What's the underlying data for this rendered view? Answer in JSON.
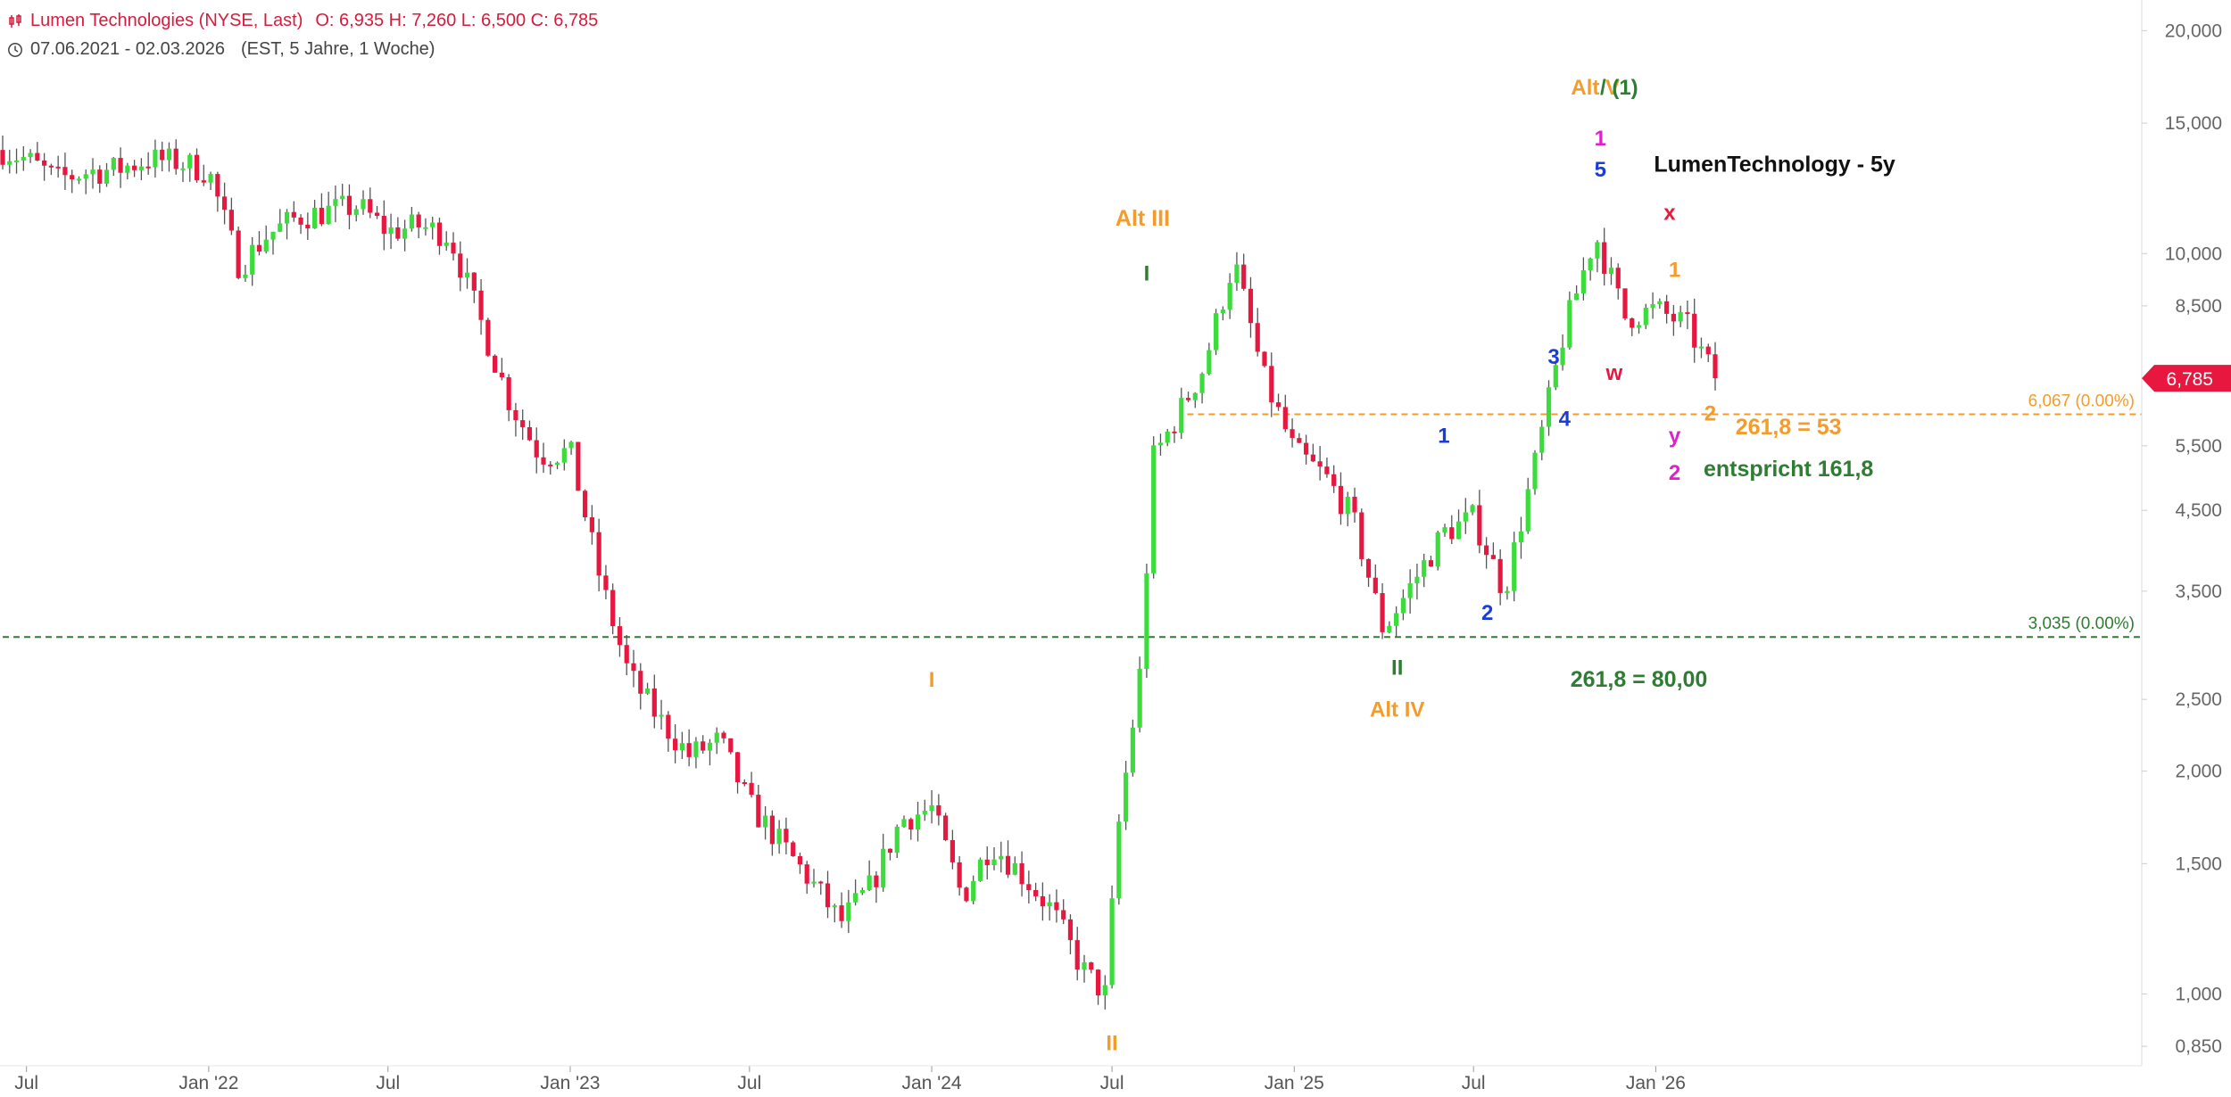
{
  "header": {
    "title": "Lumen Technologies (NYSE, Last)",
    "ohlc": "O: 6,935  H: 7,260  L: 6,500  C: 6,785",
    "range": "07.06.2021 - 02.03.2026",
    "range_detail": "(EST, 5 Jahre, 1 Woche)",
    "icons": [
      "candlestick-icon",
      "clock-icon"
    ]
  },
  "colors": {
    "up": "#3ddc3d",
    "down": "#e8173f",
    "wick": "#555555",
    "orange": "#f39c2b",
    "green": "#2e7d32",
    "blue": "#1a3cdb",
    "magenta": "#e020c8",
    "red": "#e8173f",
    "black": "#111111"
  },
  "chart_data": {
    "type": "candlestick",
    "title": "LumenTechnology - 5y",
    "y_scale": "log",
    "ylim": [
      0.8,
      22
    ],
    "x_range": [
      "2021-06-07",
      "2026-03-02"
    ],
    "y_ticks": [
      {
        "v": 20,
        "label": "20,000"
      },
      {
        "v": 15,
        "label": "15,000"
      },
      {
        "v": 10,
        "label": "10,000"
      },
      {
        "v": 8.5,
        "label": "8,500"
      },
      {
        "v": 5.5,
        "label": "5,500"
      },
      {
        "v": 4.5,
        "label": "4,500"
      },
      {
        "v": 3.5,
        "label": "3,500"
      },
      {
        "v": 2.5,
        "label": "2,500"
      },
      {
        "v": 2.0,
        "label": "2,000"
      },
      {
        "v": 1.5,
        "label": "1,500"
      },
      {
        "v": 1.0,
        "label": "1,000"
      },
      {
        "v": 0.85,
        "label": "0,850"
      }
    ],
    "x_ticks": [
      {
        "d": "2021-07-01",
        "label": "Jul"
      },
      {
        "d": "2022-01-01",
        "label": "Jan '22"
      },
      {
        "d": "2022-07-01",
        "label": "Jul"
      },
      {
        "d": "2023-01-01",
        "label": "Jan '23"
      },
      {
        "d": "2023-07-01",
        "label": "Jul"
      },
      {
        "d": "2024-01-01",
        "label": "Jan '24"
      },
      {
        "d": "2024-07-01",
        "label": "Jul"
      },
      {
        "d": "2025-01-01",
        "label": "Jan '25"
      },
      {
        "d": "2025-07-01",
        "label": "Jul"
      },
      {
        "d": "2026-01-01",
        "label": "Jan '26"
      }
    ],
    "last_price": {
      "v": 6.785,
      "label": "6,785"
    },
    "hlines": [
      {
        "v": 6.067,
        "label": "6,067 (0.00%)",
        "color": "#f39c2b",
        "start": "2024-09-15"
      },
      {
        "v": 3.035,
        "label": "3,035 (0.00%)",
        "color": "#2e7d32",
        "start": "2021-06-07"
      }
    ],
    "close_path": [
      [
        "2021-06-07",
        13.8
      ],
      [
        "2021-07-01",
        13.4
      ],
      [
        "2021-08-01",
        12.6
      ],
      [
        "2021-09-01",
        12.9
      ],
      [
        "2021-10-01",
        13.0
      ],
      [
        "2021-11-01",
        13.4
      ],
      [
        "2021-12-01",
        13.3
      ],
      [
        "2022-01-01",
        12.9
      ],
      [
        "2022-02-01",
        9.6
      ],
      [
        "2022-03-01",
        10.6
      ],
      [
        "2022-04-01",
        11.2
      ],
      [
        "2022-05-01",
        11.4
      ],
      [
        "2022-06-01",
        11.6
      ],
      [
        "2022-07-01",
        10.7
      ],
      [
        "2022-08-01",
        10.9
      ],
      [
        "2022-09-01",
        10.6
      ],
      [
        "2022-10-01",
        8.2
      ],
      [
        "2022-11-01",
        6.3
      ],
      [
        "2022-12-01",
        5.35
      ],
      [
        "2023-01-01",
        5.4
      ],
      [
        "2023-02-01",
        3.6
      ],
      [
        "2023-03-01",
        2.7
      ],
      [
        "2023-04-01",
        2.35
      ],
      [
        "2023-05-01",
        2.1
      ],
      [
        "2023-06-01",
        2.2
      ],
      [
        "2023-07-01",
        1.8
      ],
      [
        "2023-08-01",
        1.6
      ],
      [
        "2023-09-01",
        1.42
      ],
      [
        "2023-10-01",
        1.25
      ],
      [
        "2023-11-01",
        1.4
      ],
      [
        "2023-12-01",
        1.72
      ],
      [
        "2024-01-01",
        1.78
      ],
      [
        "2024-02-01",
        1.35
      ],
      [
        "2024-03-01",
        1.6
      ],
      [
        "2024-04-01",
        1.45
      ],
      [
        "2024-05-01",
        1.3
      ],
      [
        "2024-06-01",
        1.08
      ],
      [
        "2024-06-24",
        1.0
      ],
      [
        "2024-07-08",
        1.7
      ],
      [
        "2024-07-29",
        2.7
      ],
      [
        "2024-08-12",
        5.3
      ],
      [
        "2024-09-01",
        5.9
      ],
      [
        "2024-10-01",
        7.0
      ],
      [
        "2024-11-01",
        9.8
      ],
      [
        "2024-12-01",
        6.8
      ],
      [
        "2025-01-01",
        5.4
      ],
      [
        "2025-02-01",
        5.0
      ],
      [
        "2025-03-01",
        4.4
      ],
      [
        "2025-04-01",
        3.1
      ],
      [
        "2025-05-01",
        3.6
      ],
      [
        "2025-06-01",
        4.2
      ],
      [
        "2025-07-01",
        4.4
      ],
      [
        "2025-08-01",
        3.5
      ],
      [
        "2025-09-01",
        5.2
      ],
      [
        "2025-10-01",
        7.9
      ],
      [
        "2025-11-01",
        10.6
      ],
      [
        "2025-12-01",
        8.2
      ],
      [
        "2026-01-01",
        8.4
      ],
      [
        "2026-02-01",
        8.0
      ],
      [
        "2026-03-02",
        6.785
      ]
    ],
    "annotations": [
      {
        "text": "Alt III",
        "d": "2024-08-01",
        "v": 10.9,
        "color": "orange"
      },
      {
        "text": "I",
        "d": "2024-08-05",
        "v": 9.2,
        "color": "green"
      },
      {
        "text": "I",
        "d": "2024-01-01",
        "v": 2.6,
        "color": "orange"
      },
      {
        "text": "II",
        "d": "2024-07-01",
        "v": 0.84,
        "color": "orange"
      },
      {
        "text": "II",
        "d": "2025-04-15",
        "v": 2.7,
        "color": "green"
      },
      {
        "text": "Alt IV",
        "d": "2025-04-15",
        "v": 2.37,
        "color": "orange"
      },
      {
        "text": "1",
        "d": "2025-06-01",
        "v": 5.55,
        "color": "blue"
      },
      {
        "text": "2",
        "d": "2025-07-15",
        "v": 3.2,
        "color": "blue"
      },
      {
        "text": "3",
        "d": "2025-09-20",
        "v": 7.1,
        "color": "blue"
      },
      {
        "text": "4",
        "d": "2025-10-01",
        "v": 5.85,
        "color": "blue"
      },
      {
        "text": "5",
        "d": "2025-11-06",
        "v": 12.7,
        "color": "blue"
      },
      {
        "text": "1",
        "d": "2025-11-06",
        "v": 14.0,
        "color": "magenta"
      },
      {
        "text": "Alt V",
        "d": "2025-11-01",
        "v": 16.4,
        "color": "orange"
      },
      {
        "text": "/ (1)",
        "d": "2025-11-25",
        "v": 16.4,
        "color": "green"
      },
      {
        "text": "w",
        "d": "2025-11-20",
        "v": 6.75,
        "color": "red"
      },
      {
        "text": "x",
        "d": "2026-01-15",
        "v": 11.1,
        "color": "red"
      },
      {
        "text": "1",
        "d": "2026-01-20",
        "v": 9.3,
        "color": "orange"
      },
      {
        "text": "2",
        "d": "2026-02-25",
        "v": 5.95,
        "color": "orange"
      },
      {
        "text": "y",
        "d": "2026-01-20",
        "v": 5.55,
        "color": "magenta"
      },
      {
        "text": "2",
        "d": "2026-01-20",
        "v": 4.95,
        "color": "magenta"
      },
      {
        "text": "261,8 = 53",
        "d": "2026-05-15",
        "v": 5.7,
        "color": "orange"
      },
      {
        "text": "entspricht 161,8",
        "d": "2026-05-15",
        "v": 5.0,
        "color": "green"
      },
      {
        "text": "261,8 = 80,00",
        "d": "2025-12-15",
        "v": 2.6,
        "color": "green"
      },
      {
        "text": "LumenTechnology - 5y",
        "d": "2026-05-01",
        "v": 12.9,
        "color": "black"
      }
    ]
  }
}
